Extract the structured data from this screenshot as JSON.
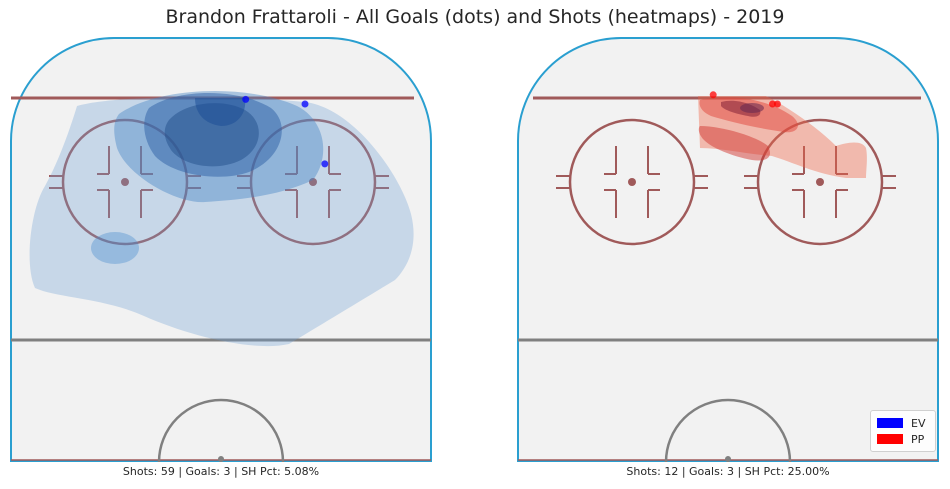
{
  "title": "Brandon Frattaroli - All Goals (dots) and Shots (heatmaps) - 2019",
  "colors": {
    "ev": "#0000ff",
    "pp": "#ff0000",
    "board": "#2a9fd0",
    "red_line": "#a05a5a",
    "center_line": "#808080",
    "ice": "#f2f2f2"
  },
  "chart_data": [
    {
      "type": "heatmap",
      "panel": "left",
      "strength": "EV",
      "caption": "Shots: 59 | Goals: 3 | SH Pct: 5.08%",
      "shots": 59,
      "goals_count": 3,
      "sh_pct": "5.08%",
      "goals": [
        {
          "x": 5,
          "y": 83
        },
        {
          "x": 17,
          "y": 82
        },
        {
          "x": 21,
          "y": 69
        }
      ]
    },
    {
      "type": "heatmap",
      "panel": "right",
      "strength": "PP",
      "caption": "Shots: 12 | Goals: 3 | SH Pct: 25.00%",
      "shots": 12,
      "goals_count": 3,
      "sh_pct": "25.00%",
      "goals": [
        {
          "x": -3,
          "y": 84
        },
        {
          "x": 9,
          "y": 82
        },
        {
          "x": 10,
          "y": 82
        }
      ]
    }
  ],
  "legend": {
    "placement": "lower-right",
    "items": [
      {
        "label": "EV",
        "color": "#0000ff"
      },
      {
        "label": "PP",
        "color": "#ff0000"
      }
    ]
  }
}
